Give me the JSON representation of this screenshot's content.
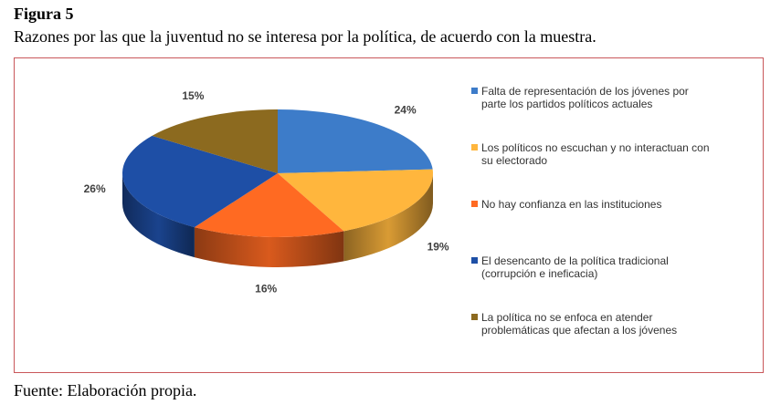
{
  "chart_data": {
    "type": "pie3d",
    "title": "Figura 5",
    "subtitle": "Razones por las que la juventud no se interesa por la política, de acuerdo con la muestra.",
    "source": "Fuente: Elaboración propia.",
    "categories": [
      "Falta de representación de los jóvenes por parte los partidos políticos actuales",
      "Los políticos no escuchan y no interactuan con su electorado",
      "No hay confianza en las instituciones",
      "El desencanto de la política tradicional (corrupción e ineficacia)",
      "La política no se enfoca en atender problemáticas que afectan a los jóvenes"
    ],
    "values": [
      24,
      19,
      16,
      26,
      15
    ],
    "value_labels": [
      "24%",
      "19%",
      "16%",
      "26%",
      "15%"
    ],
    "colors": [
      "#3d7cc9",
      "#ffb63d",
      "#ff6a22",
      "#1e4fa6",
      "#8c6a1f"
    ],
    "legend": "right"
  }
}
